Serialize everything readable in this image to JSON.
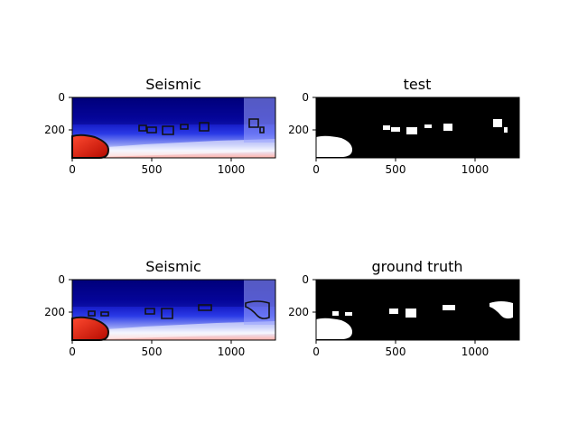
{
  "panels": [
    {
      "title": "Seismic",
      "kind": "seismic",
      "contours": "test",
      "x_ticks": [
        "0",
        "500",
        "1000"
      ],
      "y_ticks": [
        "0",
        "200"
      ]
    },
    {
      "title": "test",
      "kind": "mask",
      "mask": "test",
      "x_ticks": [
        "0",
        "500",
        "1000"
      ],
      "y_ticks": [
        "0",
        "200"
      ]
    },
    {
      "title": "Seismic",
      "kind": "seismic",
      "contours": "truth",
      "x_ticks": [
        "0",
        "500",
        "1000"
      ],
      "y_ticks": [
        "0",
        "200"
      ]
    },
    {
      "title": "ground truth",
      "kind": "mask",
      "mask": "truth",
      "x_ticks": [
        "0",
        "500",
        "1000"
      ],
      "y_ticks": [
        "0",
        "200"
      ]
    }
  ],
  "colors": {
    "seismic_deep": "#00007a",
    "seismic_mid": "#1a2ad8",
    "seismic_light": "#c8ccff",
    "seismic_red": "#e0190e",
    "mask_bg": "#000000",
    "mask_fg": "#ffffff",
    "contour": "#111111"
  }
}
